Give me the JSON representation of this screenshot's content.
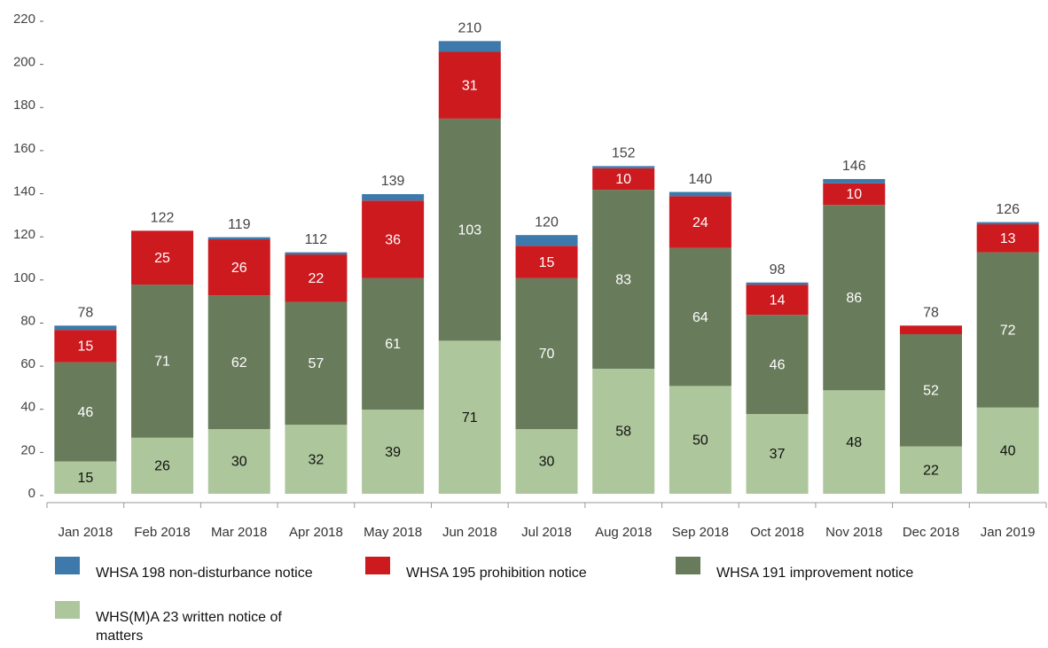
{
  "chart_data": {
    "type": "stacked_bar",
    "categories": [
      "Jan 2018",
      "Feb 2018",
      "Mar 2018",
      "Apr 2018",
      "May 2018",
      "Jun 2018",
      "Jul 2018",
      "Aug 2018",
      "Sep 2018",
      "Oct 2018",
      "Nov 2018",
      "Dec 2018",
      "Jan 2019"
    ],
    "series": [
      {
        "name": "WHS(M)A 23 written notice of matters",
        "color": "#adc69b",
        "label_color": "#111111",
        "values": [
          15,
          26,
          30,
          32,
          39,
          71,
          30,
          58,
          50,
          37,
          48,
          22,
          40
        ]
      },
      {
        "name": "WHSA 191 improvement notice",
        "color": "#687b5b",
        "label_color": "#ffffff",
        "values": [
          46,
          71,
          62,
          57,
          61,
          103,
          70,
          83,
          64,
          46,
          86,
          52,
          72
        ]
      },
      {
        "name": "WHSA 195 prohibition notice",
        "color": "#cc1a1f",
        "label_color": "#ffffff",
        "values": [
          15,
          25,
          26,
          22,
          36,
          31,
          15,
          10,
          24,
          14,
          10,
          4,
          13
        ],
        "value_labels": [
          "15",
          "25",
          "26",
          "22",
          "36",
          "31",
          "15",
          "10",
          "24",
          "14",
          "10",
          null,
          "13"
        ]
      },
      {
        "name": "WHSA 198 non-disturbance notice",
        "color": "#3d7aab",
        "show_labels": false,
        "values": [
          2,
          0,
          1,
          1,
          3,
          5,
          5,
          1,
          2,
          1,
          2,
          0,
          1
        ]
      }
    ],
    "totals": [
      78,
      122,
      119,
      112,
      139,
      210,
      120,
      152,
      140,
      98,
      146,
      78,
      126
    ],
    "legend_order": [
      3,
      2,
      1,
      0
    ],
    "ylim": [
      0,
      220
    ],
    "yticks": [
      0,
      20,
      40,
      60,
      80,
      100,
      120,
      140,
      160,
      180,
      200,
      220
    ]
  }
}
